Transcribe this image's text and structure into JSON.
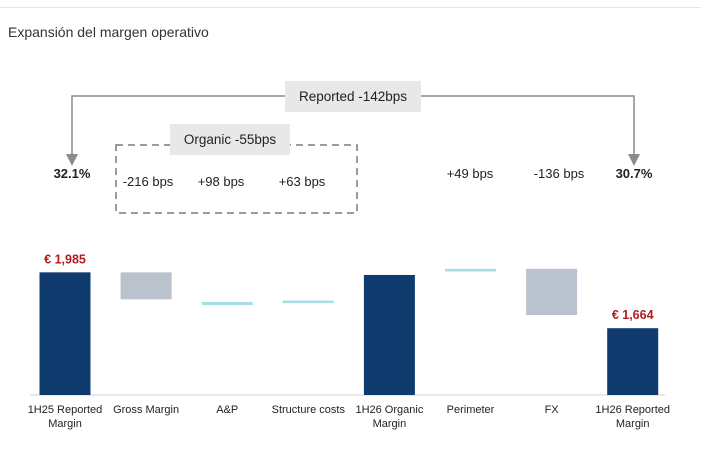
{
  "page": {
    "title": "Expansión del margen operativo"
  },
  "chart_data": {
    "type": "waterfall",
    "title": "Expansión del margen operativo",
    "categories": [
      "1H25 Reported Margin",
      "Gross Margin",
      "A&P",
      "Structure costs",
      "1H26 Organic Margin",
      "Perimeter",
      "FX",
      "1H26 Reported Margin"
    ],
    "category_lines": [
      [
        "1H25 Reported",
        "Margin"
      ],
      [
        "Gross Margin"
      ],
      [
        "A&P"
      ],
      [
        "Structure costs"
      ],
      [
        "1H26 Organic",
        "Margin"
      ],
      [
        "Perimeter"
      ],
      [
        "FX"
      ],
      [
        "1H26 Reported",
        "Margin"
      ]
    ],
    "bars": [
      {
        "kind": "total",
        "value": 1985,
        "label": "€ 1,985"
      },
      {
        "kind": "delta",
        "start": 1985,
        "end": 1830
      },
      {
        "kind": "delta",
        "start": 1815,
        "end": 1797
      },
      {
        "kind": "delta",
        "start": 1823,
        "end": 1808
      },
      {
        "kind": "total",
        "value": 1970
      },
      {
        "kind": "delta",
        "start": 2005,
        "end": 1990
      },
      {
        "kind": "delta",
        "start": 2005,
        "end": 1740
      },
      {
        "kind": "total",
        "value": 1664,
        "label": "€ 1,664"
      }
    ],
    "ylim": [
      1280,
      2010
    ],
    "margin_labels": [
      "32.1%",
      "-216 bps",
      "+98 bps",
      "+63 bps",
      "",
      "+49 bps",
      "-136 bps",
      "30.7%"
    ],
    "brackets": {
      "reported": "Reported -142bps",
      "organic": "Organic -55bps"
    },
    "colors": {
      "total": "#0e3a6e",
      "negative": "#b9c2cd",
      "positive": "#a9dce9",
      "value_label": "#b01c1c",
      "bracket": "#8c8c8c",
      "bracket_box": "#e8e8e8"
    }
  }
}
